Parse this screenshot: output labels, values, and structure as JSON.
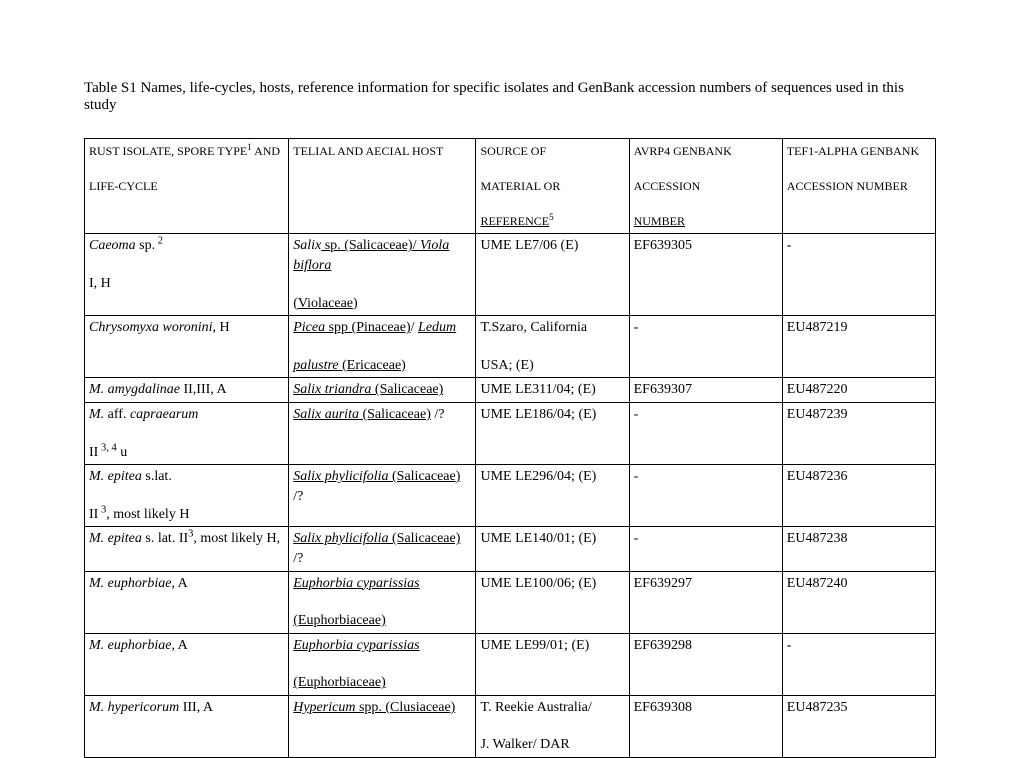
{
  "caption": "Table S1 Names, life-cycles, hosts, reference information for specific isolates and GenBank accession numbers of sequences used in this study",
  "header": {
    "c1a": "RUST ISOLATE, SPORE TYPE",
    "c1sup": "1",
    "c1b": " AND",
    "c1c": "LIFE-CYCLE",
    "c2": "TELIAL AND AECIAL HOST",
    "c3a": "SOURCE OF",
    "c3b": "MATERIAL OR",
    "c3c": "REFERENCE",
    "c3sup": "5",
    "c4a": "AVRP4 GENBANK",
    "c4b": "ACCESSION",
    "c4c": "NUMBER",
    "c5a": "TEF1-ALPHA GENBANK",
    "c5b": "ACCESSION NUMBER"
  },
  "rows": [
    {
      "c1": [
        {
          "t": "Caeoma",
          "i": true
        },
        {
          "t": " sp."
        },
        {
          "t": " 2",
          "sup": true
        }
      ],
      "c1b": [
        {
          "t": " I, H"
        }
      ],
      "c2": [
        {
          "t": "Salix",
          "i": true
        },
        {
          "t": " sp.",
          "u": true
        },
        {
          "t": " (Salicaceae)/ ",
          "u": true
        },
        {
          "t": "Viola biflora",
          "i": true,
          "u": true
        }
      ],
      "c2b": [
        {
          "t": "(Violaceae)",
          "u": true
        }
      ],
      "c3": [
        {
          "t": "UME LE7/06 (E)"
        }
      ],
      "c4": [
        {
          "t": "EF639305"
        }
      ],
      "c5": [
        {
          "t": "-"
        }
      ]
    },
    {
      "c1": [
        {
          "t": "Chrysomyxa woronini",
          "i": true
        },
        {
          "t": ", H"
        }
      ],
      "c2": [
        {
          "t": "Picea",
          "i": true,
          "u": true
        },
        {
          "t": " spp (Pinaceae)",
          "u": true
        },
        {
          "t": "/ "
        },
        {
          "t": "Ledum",
          "i": true,
          "u": true
        }
      ],
      "c2b": [
        {
          "t": "palustre",
          "i": true,
          "u": true
        },
        {
          "t": " (Ericaceae)",
          "u": true
        }
      ],
      "c3": [
        {
          "t": "T.Szaro, California"
        }
      ],
      "c3b": [
        {
          "t": "USA; (E)"
        }
      ],
      "c4": [
        {
          "t": "-"
        }
      ],
      "c5": [
        {
          "t": "EU487219"
        }
      ]
    },
    {
      "c1": [
        {
          "t": "M. amygdalinae",
          "i": true
        },
        {
          "t": " II,III, A"
        }
      ],
      "c2": [
        {
          "t": "Salix triandra",
          "i": true,
          "u": true
        },
        {
          "t": " (Salicaceae)",
          "u": true
        }
      ],
      "c3": [
        {
          "t": "UME LE311/04; (E)"
        }
      ],
      "c4": [
        {
          "t": "EF639307"
        }
      ],
      "c5": [
        {
          "t": "EU487220"
        }
      ]
    },
    {
      "c1": [
        {
          "t": "M. ",
          "i": true
        },
        {
          "t": "aff."
        },
        {
          "t": " capraearum",
          "i": true
        }
      ],
      "c1b": [
        {
          "t": "II"
        },
        {
          "t": " 3, 4",
          "sup": true
        },
        {
          "t": " u"
        }
      ],
      "c2": [
        {
          "t": "Salix aurita",
          "i": true,
          "u": true
        },
        {
          "t": " (Salicaceae)",
          "u": true
        },
        {
          "t": " /?"
        }
      ],
      "c3": [
        {
          "t": "UME LE186/04; (E)"
        }
      ],
      "c4": [
        {
          "t": "-"
        }
      ],
      "c5": [
        {
          "t": "EU487239"
        }
      ]
    },
    {
      "c1": [
        {
          "t": "M. epitea",
          "i": true
        },
        {
          "t": " s.lat."
        }
      ],
      "c1b": [
        {
          "t": "II"
        },
        {
          "t": " 3",
          "sup": true
        },
        {
          "t": ", most likely H"
        }
      ],
      "c2": [
        {
          "t": "Salix phylicifolia",
          "i": true,
          "u": true
        },
        {
          "t": " (Salicaceae)",
          "u": true
        },
        {
          "t": " /?"
        }
      ],
      "c3": [
        {
          "t": "UME LE296/04; (E)"
        }
      ],
      "c4": [
        {
          "t": "-"
        }
      ],
      "c5": [
        {
          "t": "EU487236"
        }
      ]
    },
    {
      "c1": [
        {
          "t": "M. epitea",
          "i": true
        },
        {
          "t": " s. lat. II"
        },
        {
          "t": "3",
          "sup": true
        },
        {
          "t": ", most likely H,"
        }
      ],
      "c2": [
        {
          "t": "Salix phylicifolia",
          "i": true,
          "u": true
        },
        {
          "t": " (Salicaceae)",
          "u": true
        },
        {
          "t": " /?"
        }
      ],
      "c3": [
        {
          "t": "UME LE140/01; (E)"
        }
      ],
      "c4": [
        {
          "t": "-"
        }
      ],
      "c5": [
        {
          "t": "EU487238"
        }
      ]
    },
    {
      "c1": [
        {
          "t": "M. euphorbiae",
          "i": true
        },
        {
          "t": ", A"
        }
      ],
      "c2": [
        {
          "t": "Euphorbia cyparissias",
          "i": true,
          "u": true
        }
      ],
      "c2b": [
        {
          "t": "(Euphorbiaceae)",
          "u": true
        }
      ],
      "c3": [
        {
          "t": "UME LE100/06; (E)"
        }
      ],
      "c4": [
        {
          "t": "EF639297"
        }
      ],
      "c5": [
        {
          "t": "EU487240"
        }
      ]
    },
    {
      "c1": [
        {
          "t": "M. euphorbiae",
          "i": true
        },
        {
          "t": ", A"
        }
      ],
      "c2": [
        {
          "t": "Euphorbia cyparissias",
          "i": true,
          "u": true
        }
      ],
      "c2b": [
        {
          "t": "(Euphorbiaceae)",
          "u": true
        }
      ],
      "c3": [
        {
          "t": "UME LE99/01; (E)"
        }
      ],
      "c4": [
        {
          "t": "EF639298"
        }
      ],
      "c5": [
        {
          "t": "-"
        }
      ]
    },
    {
      "c1": [
        {
          "t": "M. hypericorum",
          "i": true
        },
        {
          "t": " III, A"
        }
      ],
      "c2": [
        {
          "t": "Hypericum",
          "i": true,
          "u": true
        },
        {
          "t": " spp. (Clusiaceae)",
          "u": true
        }
      ],
      "c3": [
        {
          "t": "T. Reekie Australia/"
        }
      ],
      "c3b": [
        {
          "t": "J. Walker/ DAR"
        }
      ],
      "c4": [
        {
          "t": "EF639308"
        }
      ],
      "c5": [
        {
          "t": "EU487235"
        }
      ]
    }
  ]
}
